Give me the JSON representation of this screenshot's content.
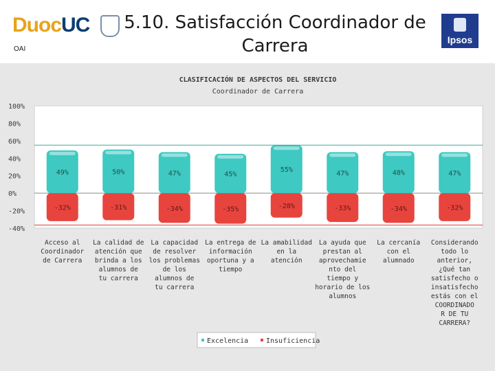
{
  "header": {
    "logo_left": "Duoc",
    "logo_right": "UC",
    "subtitle": "OAI",
    "title_line1": "5.10. Satisfacción Coordinador de",
    "title_line2": "Carrera",
    "brand": "Ipsos"
  },
  "chart_data": {
    "type": "bar",
    "title": "CLASIFICACIÓN DE ASPECTOS DEL SERVICIO",
    "subtitle": "Coordinador de Carrera",
    "ylim": [
      -40,
      100
    ],
    "y_ticks": [
      "100%",
      "80%",
      "60%",
      "40%",
      "20%",
      "0%",
      "-20%",
      "-40%"
    ],
    "y_tick_values": [
      100,
      80,
      60,
      40,
      20,
      0,
      -20,
      -40
    ],
    "categories": [
      [
        "Acceso al",
        "Coordinador",
        "de Carrera"
      ],
      [
        "La calidad de",
        "atención que",
        "brinda a los",
        "alumnos de",
        "tu carrera"
      ],
      [
        "La capacidad",
        "de resolver",
        "los problemas",
        "de los",
        "alumnos de",
        "tu carrera"
      ],
      [
        "La entrega de",
        "información",
        "oportuna y a",
        "tiempo"
      ],
      [
        "La amabilidad",
        "en la",
        "atención"
      ],
      [
        "La ayuda que",
        "prestan al",
        "aprovechamie",
        "nto del",
        "tiempo y",
        "horario de los",
        "alumnos"
      ],
      [
        "La cercanía",
        "con el",
        "alumnado"
      ],
      [
        "Considerando",
        "todo lo",
        "anterior,",
        "¿Qué tan",
        "satisfecho o",
        "insatisfecho",
        "estás con el",
        "COORDINADO",
        "R DE TU",
        "CARRERA?"
      ]
    ],
    "series": [
      {
        "name": "Excelencia",
        "color": "#3ec9c2",
        "values": [
          49,
          50,
          47,
          45,
          55,
          47,
          48,
          47
        ],
        "labels": [
          "49%",
          "50%",
          "47%",
          "45%",
          "55%",
          "47%",
          "48%",
          "47%"
        ]
      },
      {
        "name": "Insuficiencia",
        "color": "#e8443e",
        "values": [
          -32,
          -31,
          -34,
          -35,
          -28,
          -33,
          -34,
          -32
        ],
        "labels": [
          "-32%",
          "-31%",
          "-34%",
          "-35%",
          "-28%",
          "-33%",
          "-34%",
          "-32%"
        ]
      }
    ],
    "legend": [
      "Excelencia",
      "Insuficiencia"
    ],
    "legend_position": "bottom",
    "grid": false,
    "reference_lines": {
      "upper_color": "#3fa89a",
      "lower_color": "#d93a35"
    }
  }
}
